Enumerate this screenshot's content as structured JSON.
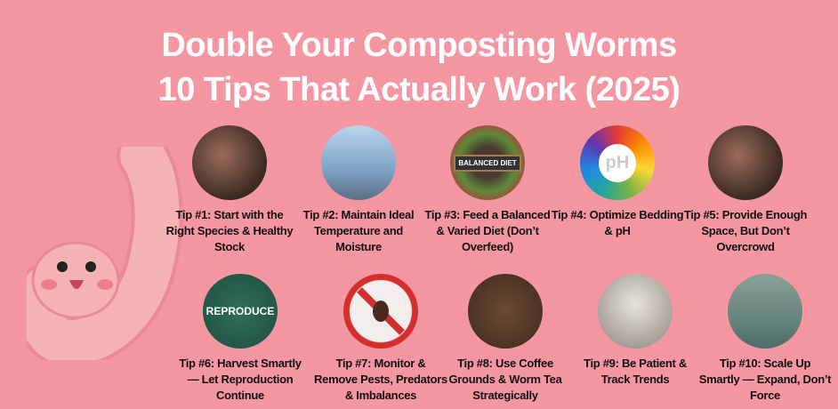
{
  "title": {
    "line1": "Double Your Composting Worms",
    "line2": "10 Tips That Actually Work (2025)"
  },
  "colors": {
    "background": "#f497a3",
    "title": "#ffffff",
    "text": "#111111"
  },
  "tips": [
    {
      "label": "Tip #1: Start with the Right Species & Healthy Stock",
      "image": "worms-in-soil"
    },
    {
      "label": "Tip #2: Maintain Ideal Temperature and Moisture",
      "image": "thermometer-city"
    },
    {
      "label": "Tip #3: Feed a Balanced & Varied Diet (Don’t Overfeed)",
      "image": "balanced-diet-food",
      "image_text": "BALANCED DIET"
    },
    {
      "label": "Tip #4: Optimize Bedding & pH",
      "image": "ph-scale",
      "image_text": "pH"
    },
    {
      "label": "Tip #5: Provide Enough Space, But Don’t Overcrowd",
      "image": "worms-in-soil"
    },
    {
      "label": "Tip #6: Harvest Smartly — Let Reproduction Continue",
      "image": "chalkboard",
      "image_text": "REPRODUCE"
    },
    {
      "label": "Tip #7: Monitor & Remove Pests, Predators & Imbalances",
      "image": "no-pests-sign"
    },
    {
      "label": "Tip #8: Use Coffee Grounds & Worm Tea Strategically",
      "image": "coffee-grounds"
    },
    {
      "label": "Tip #9: Be Patient & Track Trends",
      "image": "cocoons"
    },
    {
      "label": "Tip #10: Scale Up Smartly — Expand, Don’t Force",
      "image": "worm-bins"
    }
  ]
}
